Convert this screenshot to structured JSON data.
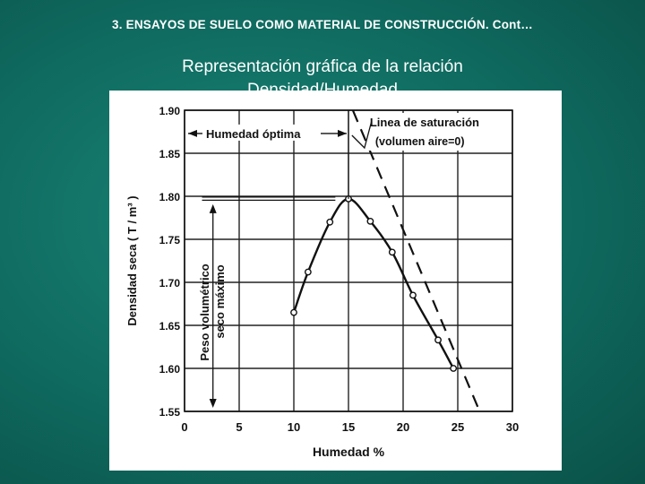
{
  "header": {
    "title": "3.  ENSAYOS DE SUELO COMO MATERIAL DE CONSTRUCCIÓN. Cont…"
  },
  "slide": {
    "subtitle_line1": "Representación gráfica de la relación",
    "subtitle_line2": "Densidad/Humedad"
  },
  "colors": {
    "background": "#0f6a5f",
    "panel": "#ffffff",
    "ink": "#111111"
  },
  "chart_data": {
    "type": "line",
    "xlabel": "Humedad  %",
    "ylabel": "Densidad  seca  ( T / m³ )",
    "xlim": [
      0,
      30
    ],
    "ylim": [
      1.55,
      1.9
    ],
    "x_ticks": [
      0,
      5,
      10,
      15,
      20,
      25,
      30
    ],
    "x_tick_labels": [
      "0",
      "5",
      "10",
      "15",
      "20",
      "25",
      "30"
    ],
    "y_ticks": [
      1.55,
      1.6,
      1.65,
      1.7,
      1.75,
      1.8,
      1.85,
      1.9
    ],
    "y_tick_labels": [
      "1.55",
      "1.60",
      "1.65",
      "1.70",
      "1.75",
      "1.80",
      "1.85",
      "1.90"
    ],
    "grid": true,
    "series": [
      {
        "style": "solid-markers",
        "x": [
          10.0,
          11.3,
          13.3,
          15.0,
          17.0,
          19.0,
          20.9,
          23.2,
          24.6
        ],
        "y": [
          1.665,
          1.712,
          1.77,
          1.797,
          1.771,
          1.735,
          1.685,
          1.633,
          1.6
        ]
      },
      {
        "style": "dashed",
        "x": [
          15.4,
          27.0
        ],
        "y": [
          1.9,
          1.55
        ]
      }
    ],
    "annotations": {
      "optimum_label": "Humedad óptima",
      "saturation_label": "Linea de saturación",
      "saturation_sub": "(volumen  aire=0)",
      "vertical_label1": "Peso volumétrico",
      "vertical_label2": "seco máximo",
      "optimum_x": 15,
      "max_density": 1.797
    }
  }
}
